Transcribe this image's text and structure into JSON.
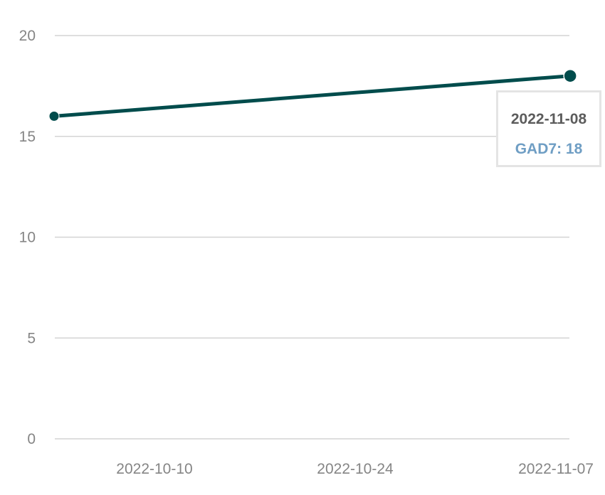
{
  "colors": {
    "line": "#004c4c",
    "grid": "#d4d4d4",
    "tick_text": "#858585",
    "tooltip_title": "#5c5c5c",
    "tooltip_value": "#6f9ec4",
    "tooltip_border": "#e4e4e4"
  },
  "chart_data": {
    "type": "line",
    "title": "",
    "xlabel": "",
    "ylabel": "",
    "ylim": [
      0,
      20
    ],
    "y_ticks": [
      "0",
      "5",
      "10",
      "15",
      "20"
    ],
    "x_ticks": [
      "2022-10-10",
      "2022-10-24",
      "2022-11-07"
    ],
    "grid": true,
    "series": [
      {
        "name": "GAD7",
        "x": [
          "2022-10-03",
          "2022-11-08"
        ],
        "y": [
          16,
          18
        ]
      }
    ]
  },
  "tooltip": {
    "title": "2022-11-08",
    "series_name": "GAD7",
    "value": "18"
  }
}
